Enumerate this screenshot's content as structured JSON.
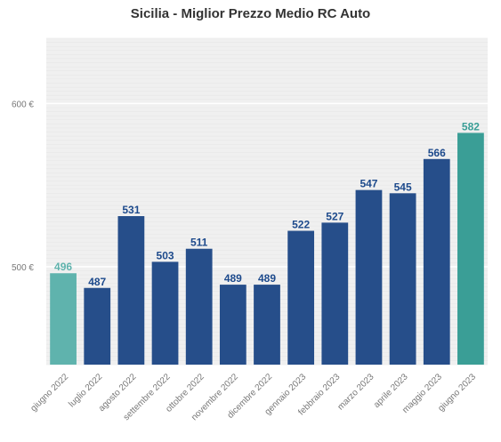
{
  "chart_data": {
    "type": "bar",
    "title": "Sicilia - Miglior Prezzo Medio RC Auto",
    "xlabel": "",
    "ylabel": "",
    "categories": [
      "giugno 2022",
      "luglio 2022",
      "agosto 2022",
      "settembre 2022",
      "ottobre 2022",
      "novembre 2022",
      "dicembre 2022",
      "gennaio 2023",
      "febbraio 2023",
      "marzo 2023",
      "aprile 2023",
      "maggio 2023",
      "giugno 2023"
    ],
    "values": [
      496,
      487,
      531,
      503,
      511,
      489,
      489,
      522,
      527,
      547,
      545,
      566,
      582
    ],
    "yticks": [
      500,
      600
    ],
    "ytick_labels": [
      "500 €",
      "600 €"
    ],
    "ylim": [
      440,
      640
    ],
    "grid": true,
    "bar_colors": [
      "#5fb3ad",
      "#264e8a",
      "#264e8a",
      "#264e8a",
      "#264e8a",
      "#264e8a",
      "#264e8a",
      "#264e8a",
      "#264e8a",
      "#264e8a",
      "#264e8a",
      "#264e8a",
      "#3a9e96"
    ],
    "label_colors": [
      "#5fb3ad",
      "#1d4a8c",
      "#1d4a8c",
      "#1d4a8c",
      "#1d4a8c",
      "#1d4a8c",
      "#1d4a8c",
      "#1d4a8c",
      "#1d4a8c",
      "#1d4a8c",
      "#1d4a8c",
      "#1d4a8c",
      "#3a9e96"
    ],
    "background_color": "#f0f0f0"
  }
}
